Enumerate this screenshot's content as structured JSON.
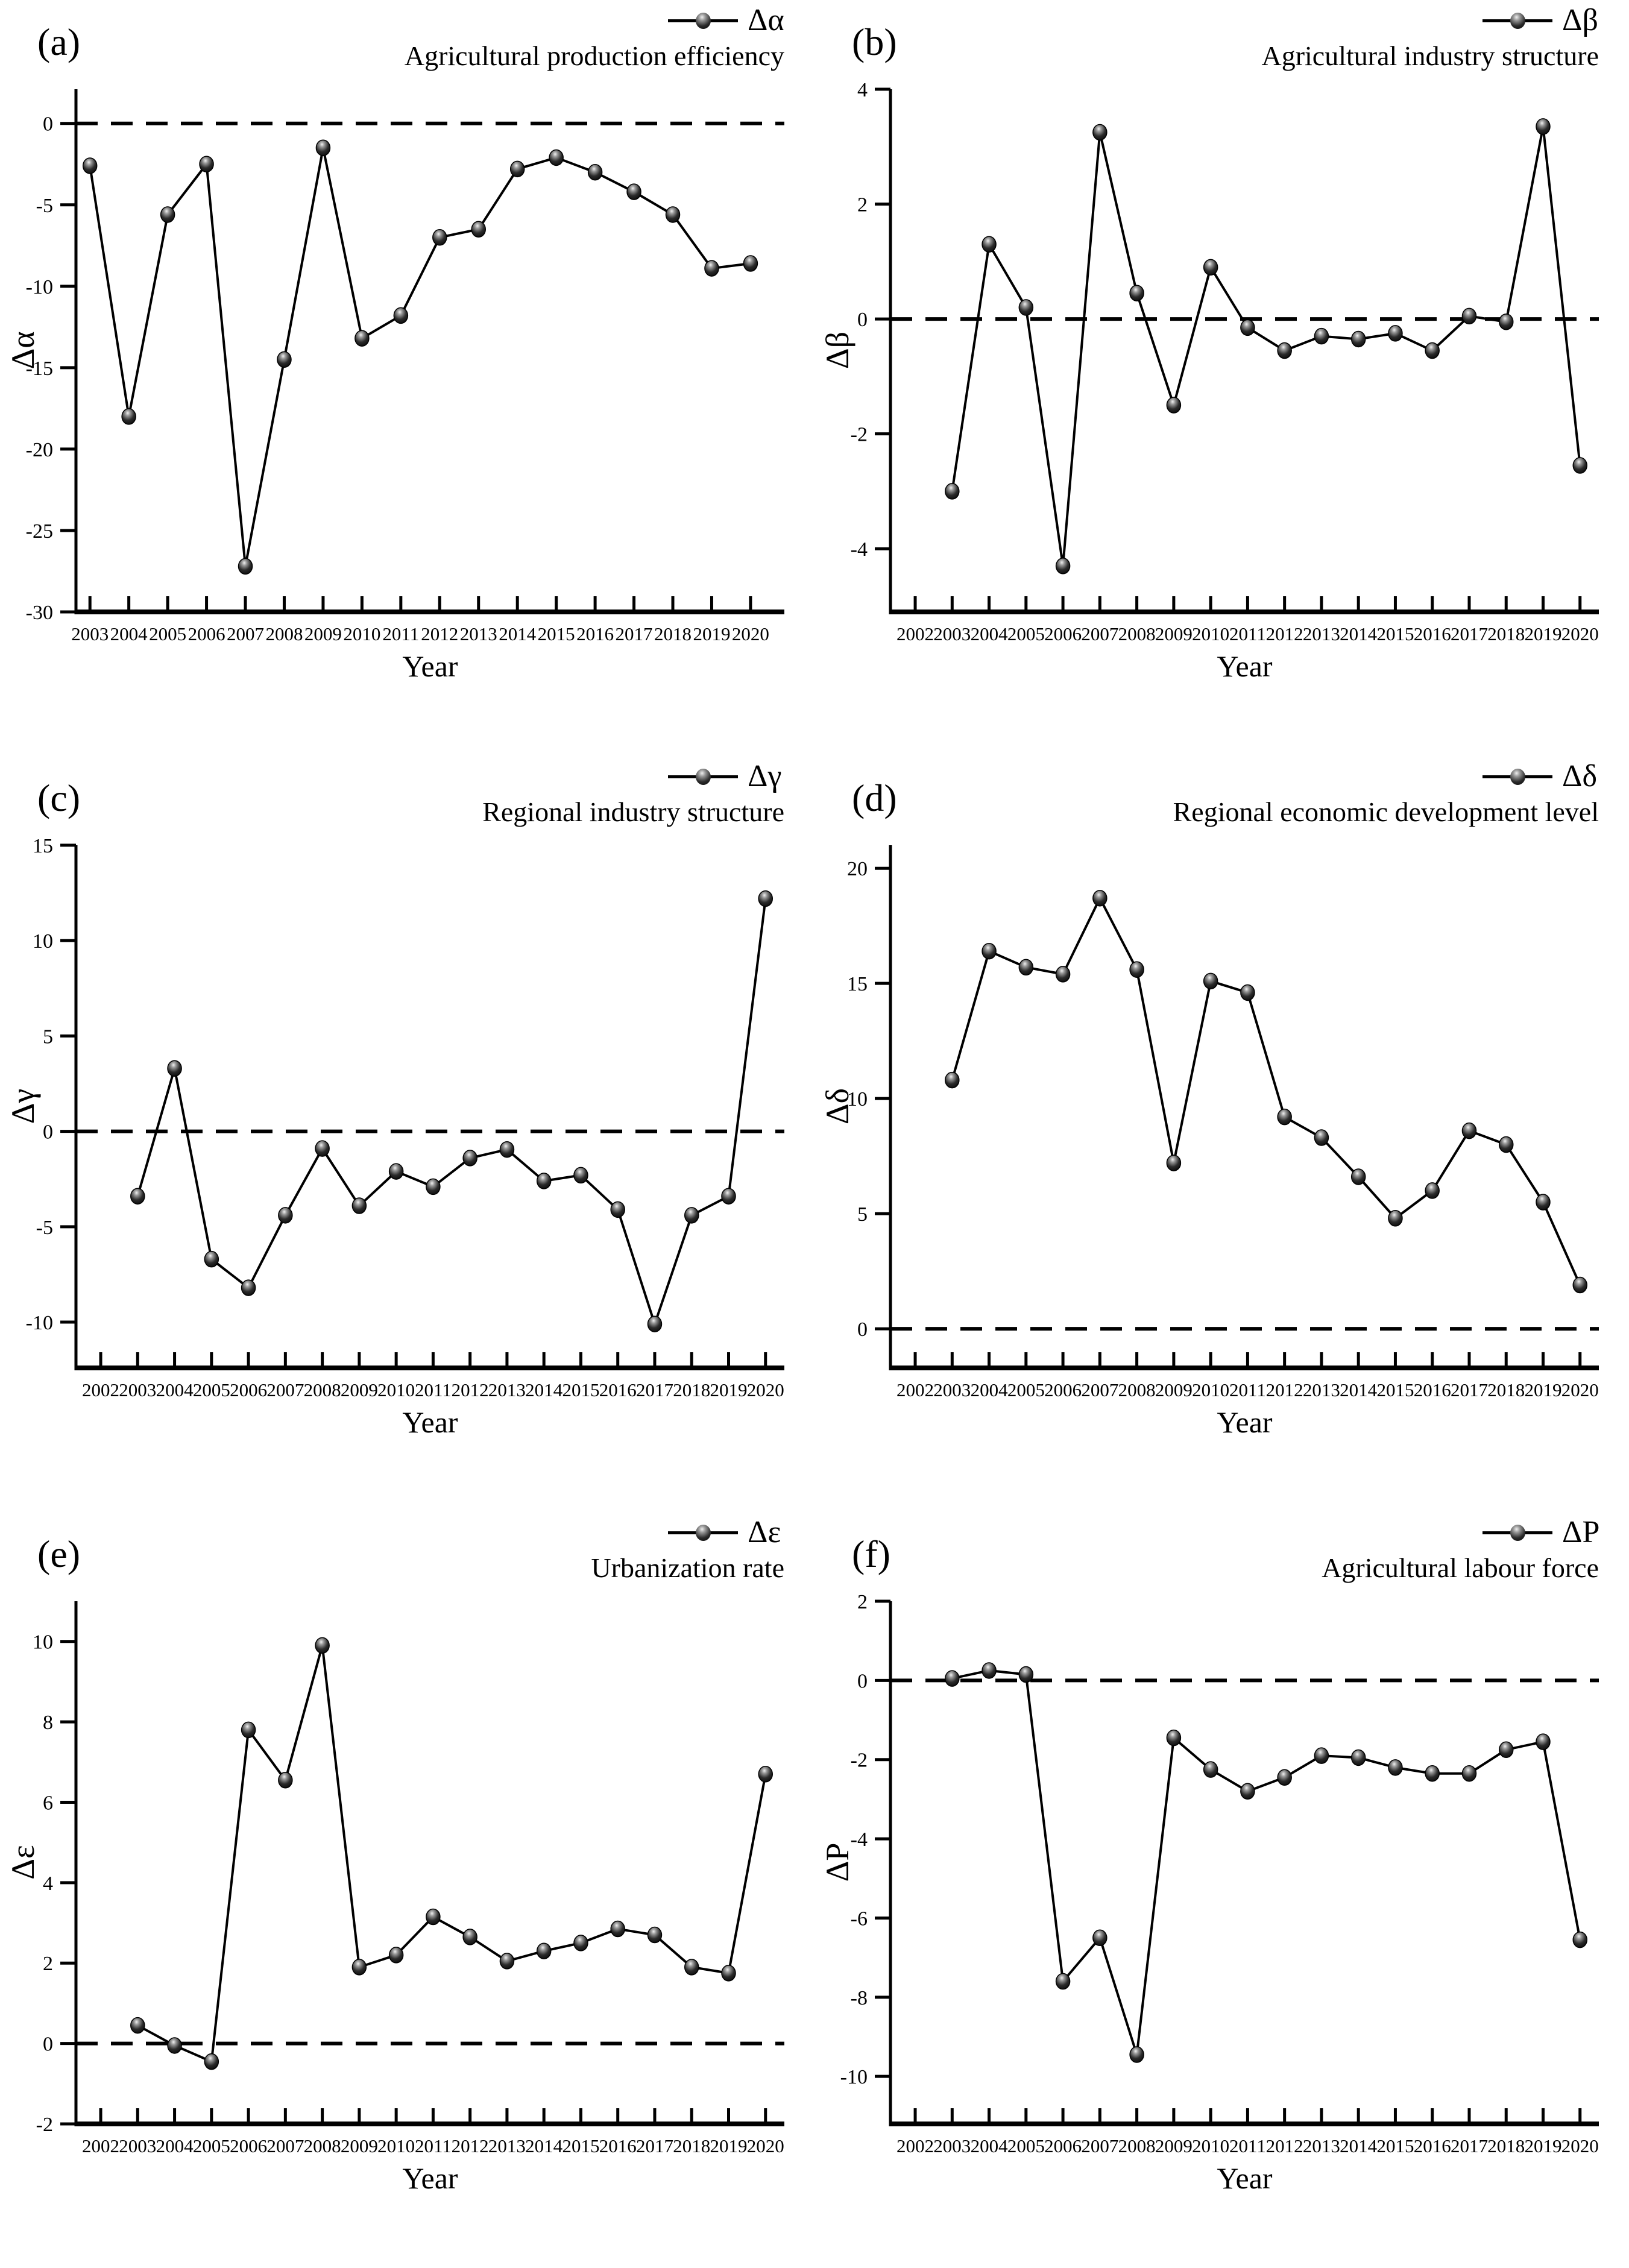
{
  "figure": {
    "xlabel": "Year",
    "colors": {
      "line": "#000000",
      "background": "#ffffff",
      "marker_highlight": "#efefef"
    }
  },
  "chart_data": [
    {
      "type": "line",
      "panel_label": "(a)",
      "legend_label": "Δα",
      "title": "Agricultural production efficiency",
      "ylabel": "Δα",
      "xlabel": "Year",
      "legend_position": "top-right",
      "grid": false,
      "zero_line": true,
      "years": [
        2003,
        2004,
        2005,
        2006,
        2007,
        2008,
        2009,
        2010,
        2011,
        2012,
        2013,
        2014,
        2015,
        2016,
        2017,
        2018,
        2019,
        2020
      ],
      "values": [
        -2.6,
        -18.0,
        -5.6,
        -2.5,
        -27.2,
        -14.5,
        -1.5,
        -13.2,
        -11.8,
        -7.0,
        -6.5,
        -2.8,
        -2.1,
        -3.0,
        -4.2,
        -5.6,
        -8.9,
        -8.6
      ],
      "x_ticks": [
        2003,
        2004,
        2005,
        2006,
        2007,
        2008,
        2009,
        2010,
        2011,
        2012,
        2013,
        2014,
        2015,
        2016,
        2017,
        2018,
        2019,
        2020
      ],
      "y_ticks": [
        0,
        -5,
        -10,
        -15,
        -20,
        -25,
        -30
      ],
      "xlim": [
        2002.64,
        2020.87
      ],
      "ylim": [
        -30,
        2.1
      ]
    },
    {
      "type": "line",
      "panel_label": "(b)",
      "legend_label": "Δβ",
      "title": "Agricultural industry structure",
      "ylabel": "Δβ",
      "xlabel": "Year",
      "legend_position": "top-right",
      "grid": false,
      "zero_line": true,
      "years": [
        2003,
        2004,
        2005,
        2006,
        2007,
        2008,
        2009,
        2010,
        2011,
        2012,
        2013,
        2014,
        2015,
        2016,
        2017,
        2018,
        2019,
        2020
      ],
      "values": [
        -3.0,
        1.3,
        0.2,
        -4.3,
        3.25,
        0.45,
        -1.5,
        0.9,
        -0.15,
        -0.55,
        -0.3,
        -0.35,
        -0.25,
        -0.55,
        0.05,
        -0.05,
        3.35,
        -2.55
      ],
      "x_ticks": [
        2002,
        2003,
        2004,
        2005,
        2006,
        2007,
        2008,
        2009,
        2010,
        2011,
        2012,
        2013,
        2014,
        2015,
        2016,
        2017,
        2018,
        2019,
        2020
      ],
      "y_ticks": [
        4,
        2,
        0,
        -2,
        -4
      ],
      "xlim": [
        2001.33,
        2020.51
      ],
      "ylim": [
        -5.1,
        4
      ]
    },
    {
      "type": "line",
      "panel_label": "(c)",
      "legend_label": "Δγ",
      "title": "Regional industry structure",
      "ylabel": "Δγ",
      "xlabel": "Year",
      "legend_position": "top-right",
      "grid": false,
      "zero_line": true,
      "years": [
        2003,
        2004,
        2005,
        2006,
        2007,
        2008,
        2009,
        2010,
        2011,
        2012,
        2013,
        2014,
        2015,
        2016,
        2017,
        2018,
        2019,
        2020
      ],
      "values": [
        -3.4,
        3.3,
        -6.7,
        -8.2,
        -4.4,
        -0.9,
        -3.9,
        -2.1,
        -2.9,
        -1.4,
        -0.95,
        -2.6,
        -2.3,
        -4.1,
        -10.1,
        -4.4,
        -3.4,
        12.2
      ],
      "x_ticks": [
        2002,
        2003,
        2004,
        2005,
        2006,
        2007,
        2008,
        2009,
        2010,
        2011,
        2012,
        2013,
        2014,
        2015,
        2016,
        2017,
        2018,
        2019,
        2020
      ],
      "y_ticks": [
        15,
        10,
        5,
        0,
        -5,
        -10
      ],
      "xlim": [
        2001.33,
        2020.51
      ],
      "ylim": [
        -12.4,
        15
      ]
    },
    {
      "type": "line",
      "panel_label": "(d)",
      "legend_label": "Δδ",
      "title": "Regional economic development level",
      "ylabel": "Δδ",
      "xlabel": "Year",
      "legend_position": "top-right",
      "grid": false,
      "zero_line": true,
      "years": [
        2003,
        2004,
        2005,
        2006,
        2007,
        2008,
        2009,
        2010,
        2011,
        2012,
        2013,
        2014,
        2015,
        2016,
        2017,
        2018,
        2019,
        2020
      ],
      "values": [
        10.8,
        16.4,
        15.7,
        15.4,
        18.7,
        15.6,
        7.2,
        15.1,
        14.6,
        9.2,
        8.3,
        6.6,
        4.8,
        6.0,
        8.6,
        8.0,
        5.5,
        1.9
      ],
      "x_ticks": [
        2002,
        2003,
        2004,
        2005,
        2006,
        2007,
        2008,
        2009,
        2010,
        2011,
        2012,
        2013,
        2014,
        2015,
        2016,
        2017,
        2018,
        2019,
        2020
      ],
      "y_ticks": [
        20,
        15,
        10,
        5,
        0
      ],
      "xlim": [
        2001.33,
        2020.51
      ],
      "ylim": [
        -1.7,
        21
      ]
    },
    {
      "type": "line",
      "panel_label": "(e)",
      "legend_label": "Δε",
      "title": "Urbanization rate",
      "ylabel": "Δε",
      "xlabel": "Year",
      "legend_position": "top-right",
      "grid": false,
      "zero_line": true,
      "years": [
        2003,
        2004,
        2005,
        2006,
        2007,
        2008,
        2009,
        2010,
        2011,
        2012,
        2013,
        2014,
        2015,
        2016,
        2017,
        2018,
        2019,
        2020
      ],
      "values": [
        0.45,
        -0.05,
        -0.45,
        7.8,
        6.55,
        9.9,
        1.9,
        2.2,
        3.15,
        2.65,
        2.05,
        2.3,
        2.5,
        2.85,
        2.7,
        1.9,
        1.75,
        6.7
      ],
      "x_ticks": [
        2002,
        2003,
        2004,
        2005,
        2006,
        2007,
        2008,
        2009,
        2010,
        2011,
        2012,
        2013,
        2014,
        2015,
        2016,
        2017,
        2018,
        2019,
        2020
      ],
      "y_ticks": [
        10,
        8,
        6,
        4,
        2,
        0,
        -2
      ],
      "xlim": [
        2001.33,
        2020.51
      ],
      "ylim": [
        -2,
        11
      ]
    },
    {
      "type": "line",
      "panel_label": "(f)",
      "legend_label": "ΔP",
      "title": "Agricultural labour force",
      "ylabel": "ΔP",
      "xlabel": "Year",
      "legend_position": "top-right",
      "grid": false,
      "zero_line": true,
      "years": [
        2003,
        2004,
        2005,
        2006,
        2007,
        2008,
        2009,
        2010,
        2011,
        2012,
        2013,
        2014,
        2015,
        2016,
        2017,
        2018,
        2019,
        2020
      ],
      "values": [
        0.05,
        0.25,
        0.15,
        -7.6,
        -6.5,
        -9.45,
        -1.45,
        -2.25,
        -2.8,
        -2.45,
        -1.9,
        -1.95,
        -2.2,
        -2.35,
        -2.35,
        -1.75,
        -1.55,
        -6.55
      ],
      "x_ticks": [
        2002,
        2003,
        2004,
        2005,
        2006,
        2007,
        2008,
        2009,
        2010,
        2011,
        2012,
        2013,
        2014,
        2015,
        2016,
        2017,
        2018,
        2019,
        2020
      ],
      "y_ticks": [
        2,
        0,
        -2,
        -4,
        -6,
        -8,
        -10
      ],
      "xlim": [
        2001.33,
        2020.51
      ],
      "ylim": [
        -11.2,
        2
      ]
    }
  ]
}
